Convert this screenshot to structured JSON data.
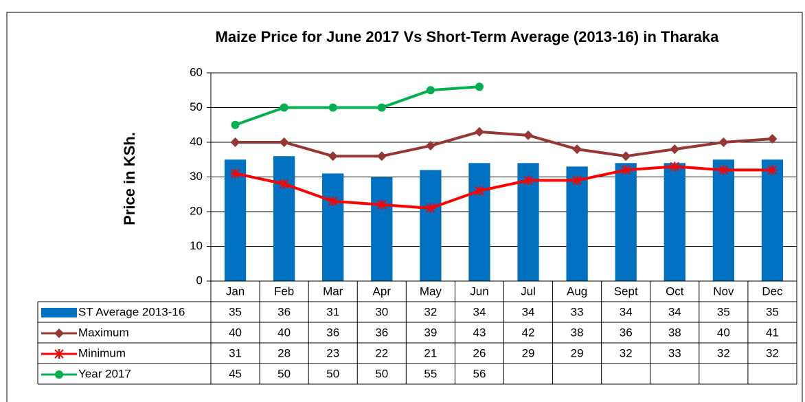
{
  "chart_data": {
    "type": "bar-line-table",
    "title": "Maize Price for June 2017 Vs Short-Term Average (2013-16) in Tharaka",
    "y_label": "Price in KSh.",
    "categories": [
      "Jan",
      "Feb",
      "Mar",
      "Apr",
      "May",
      "Jun",
      "Jul",
      "Aug",
      "Sept",
      "Oct",
      "Nov",
      "Dec"
    ],
    "series": [
      {
        "name": "ST Average 2013-16",
        "type": "bar",
        "color": "#0070c0",
        "values": [
          35,
          36,
          31,
          30,
          32,
          34,
          34,
          33,
          34,
          34,
          35,
          35
        ]
      },
      {
        "name": "Maximum",
        "type": "line",
        "marker": "diamond",
        "color": "#953735",
        "values": [
          40,
          40,
          36,
          36,
          39,
          43,
          42,
          38,
          36,
          38,
          40,
          41
        ]
      },
      {
        "name": "Minimum",
        "type": "line",
        "marker": "star",
        "color": "#ff0000",
        "values": [
          31,
          28,
          23,
          22,
          21,
          26,
          29,
          29,
          32,
          33,
          32,
          32
        ]
      },
      {
        "name": "Year 2017",
        "type": "line",
        "marker": "circle",
        "color": "#00b050",
        "values": [
          45,
          50,
          50,
          50,
          55,
          56,
          null,
          null,
          null,
          null,
          null,
          null
        ]
      }
    ],
    "ylim": [
      0,
      60
    ],
    "yticks": [
      0,
      10,
      20,
      30,
      40,
      50,
      60
    ],
    "grid": true
  }
}
